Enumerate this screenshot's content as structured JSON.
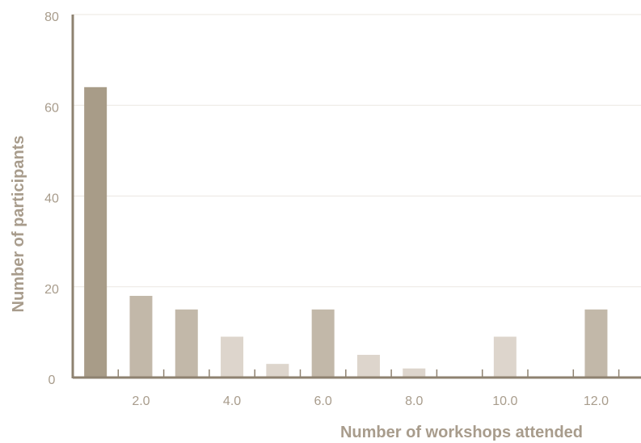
{
  "chart_data": {
    "type": "bar",
    "title": "",
    "xlabel": "Number of workshops attended",
    "ylabel": "Number of participants",
    "ylim": [
      0,
      80
    ],
    "xlim": [
      0.5,
      12.5
    ],
    "grid": true,
    "x": [
      1,
      2,
      3,
      4,
      5,
      6,
      7,
      8,
      9,
      10,
      11,
      12
    ],
    "values": [
      64,
      18,
      15,
      9,
      3,
      15,
      5,
      2,
      0,
      9,
      0,
      15
    ],
    "bar_colors": [
      "#a89c88",
      "#c2b8a9",
      "#c2b8a9",
      "#ddd5cc",
      "#ddd5cc",
      "#c2b8a9",
      "#ddd5cc",
      "#ddd5cc",
      "#ddd5cc",
      "#ddd5cc",
      "#ddd5cc",
      "#c2b8a9"
    ],
    "y_ticks": [
      0,
      20,
      40,
      60,
      80
    ],
    "y_tick_labels": [
      "0",
      "20",
      "40",
      "60",
      "80"
    ],
    "x_ticks": [
      2,
      4,
      6,
      8,
      10,
      12
    ],
    "x_tick_labels": [
      "2.0",
      "4.0",
      "6.0",
      "8.0",
      "10.0",
      "12.0"
    ],
    "colors": {
      "axis": "#8e8270",
      "grid": "#ebe7e2",
      "text": "#a89c8c"
    }
  }
}
